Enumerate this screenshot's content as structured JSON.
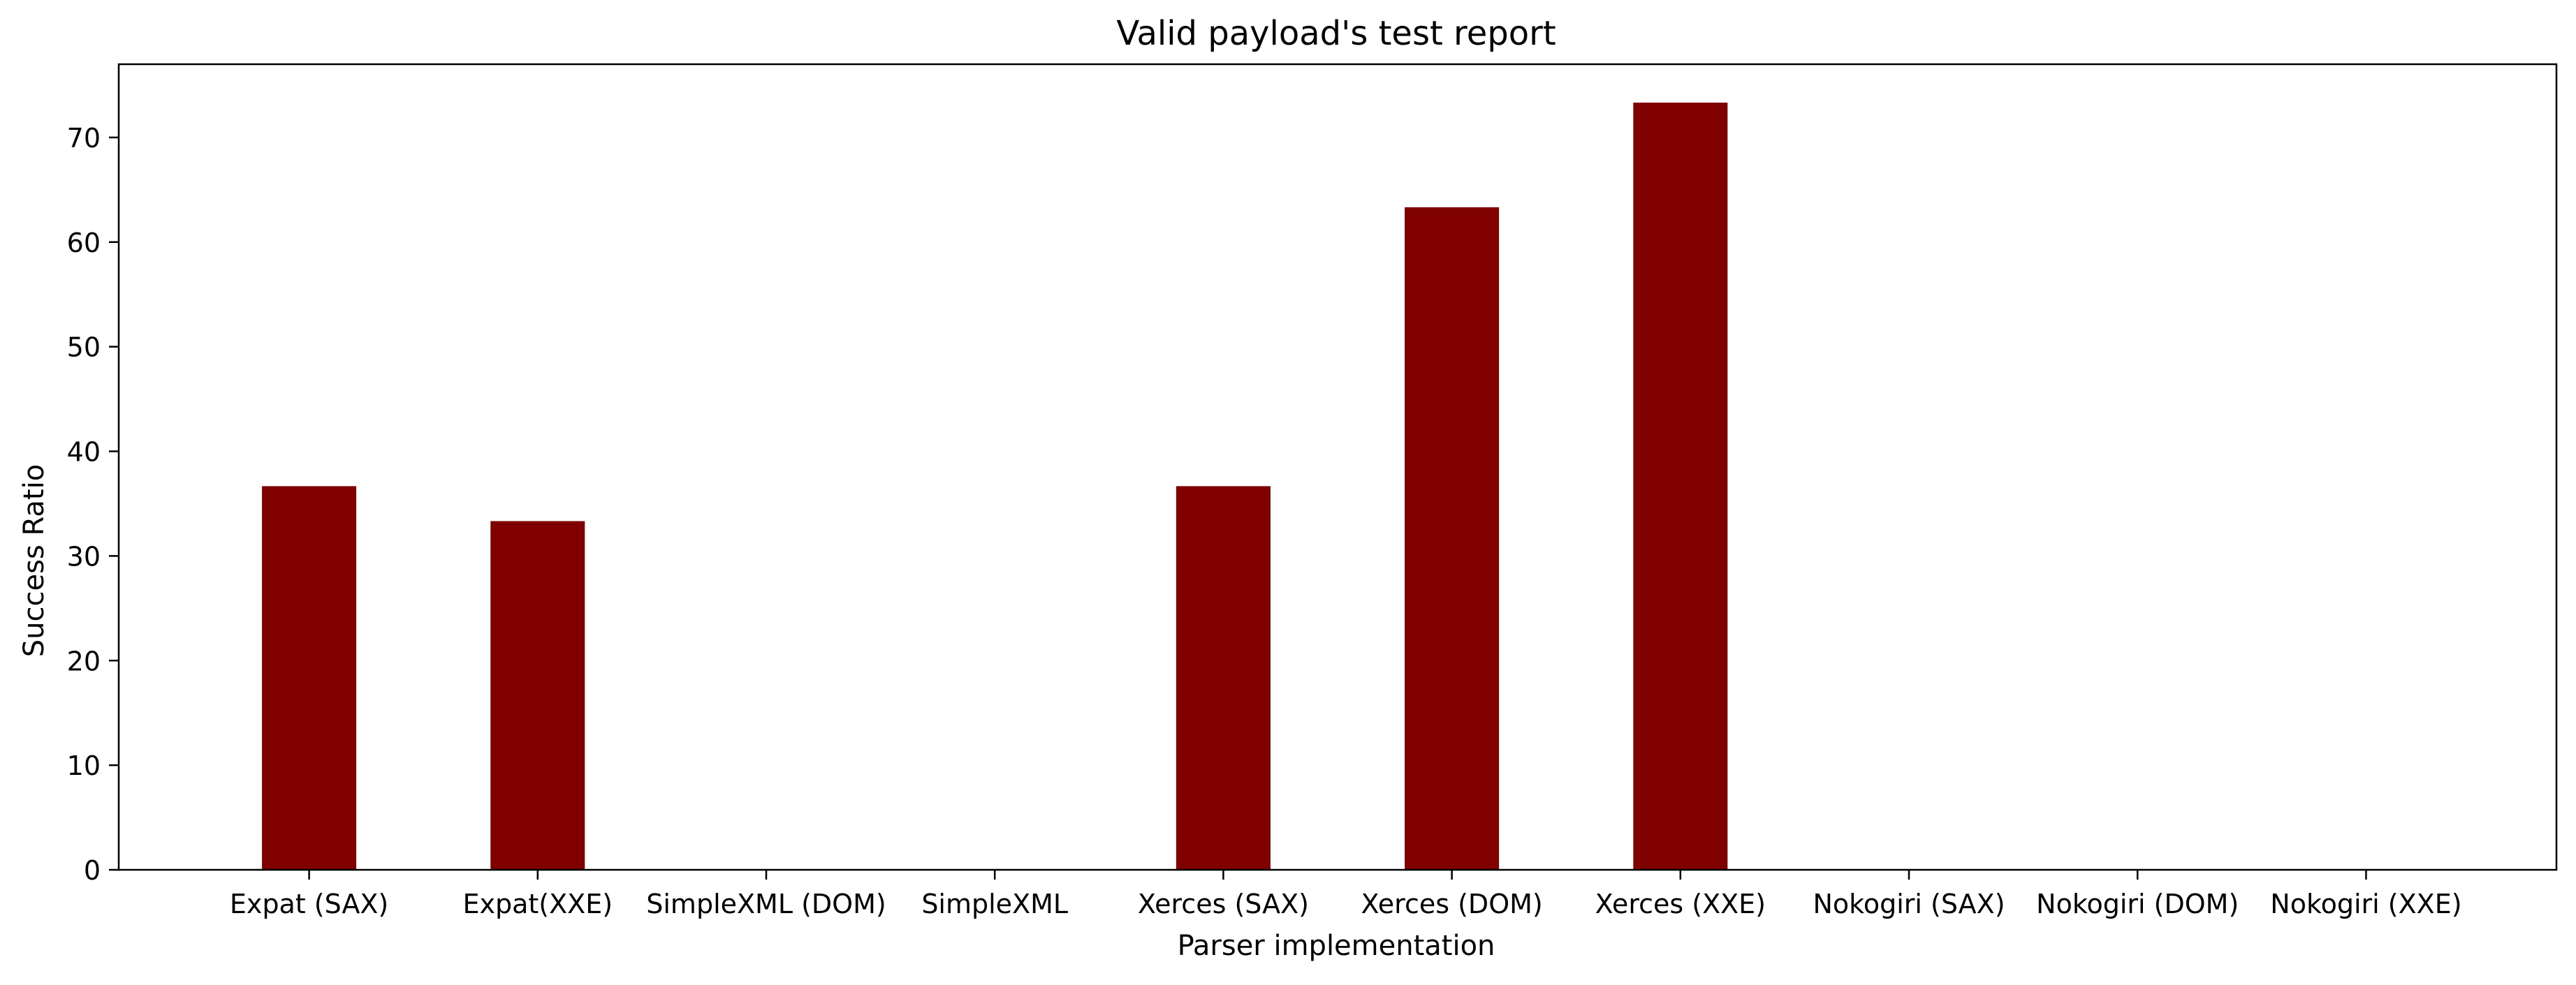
{
  "chart_data": {
    "type": "bar",
    "title": "Valid payload's test report",
    "xlabel": "Parser implementation",
    "ylabel": "Success Ratio",
    "categories": [
      "Expat (SAX)",
      "Expat(XXE)",
      "SimpleXML (DOM)",
      "SimpleXML",
      "Xerces (SAX)",
      "Xerces (DOM)",
      "Xerces (XXE)",
      "Nokogiri (SAX)",
      "Nokogiri (DOM)",
      "Nokogiri (XXE)"
    ],
    "values": [
      36.67,
      33.33,
      0,
      0,
      36.67,
      63.33,
      73.33,
      0,
      0,
      0
    ],
    "ylim": [
      0,
      77
    ],
    "yticks": [
      0,
      10,
      20,
      30,
      40,
      50,
      60,
      70
    ],
    "bar_color": "#800000",
    "grid": false,
    "legend": "none"
  }
}
